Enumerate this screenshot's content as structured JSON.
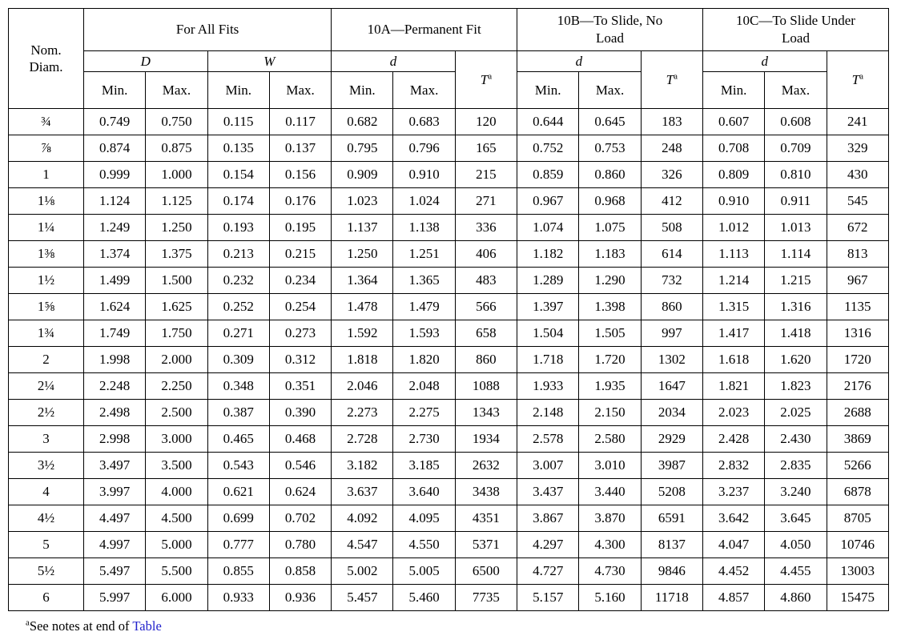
{
  "table": {
    "corner_header": {
      "line1": "Nom.",
      "line2": "Diam."
    },
    "min_label": "Min.",
    "max_label": "Max.",
    "t_label": "T",
    "t_superscript": "a",
    "groups": [
      {
        "label": "For All Fits",
        "columns": [
          {
            "label": "D"
          },
          {
            "label": "W"
          }
        ]
      },
      {
        "label": "10A—Permanent Fit",
        "columns": [
          {
            "label": "d"
          }
        ]
      },
      {
        "label": "10B—To Slide, No Load",
        "columns": [
          {
            "label": "d"
          }
        ]
      },
      {
        "label": "10C—To Slide Under Load",
        "columns": [
          {
            "label": "d"
          }
        ]
      }
    ],
    "rows": [
      {
        "diam": "¾",
        "values": [
          "0.749",
          "0.750",
          "0.115",
          "0.117",
          "0.682",
          "0.683",
          "120",
          "0.644",
          "0.645",
          "183",
          "0.607",
          "0.608",
          "241"
        ]
      },
      {
        "diam": "⅞",
        "values": [
          "0.874",
          "0.875",
          "0.135",
          "0.137",
          "0.795",
          "0.796",
          "165",
          "0.752",
          "0.753",
          "248",
          "0.708",
          "0.709",
          "329"
        ]
      },
      {
        "diam": "1",
        "values": [
          "0.999",
          "1.000",
          "0.154",
          "0.156",
          "0.909",
          "0.910",
          "215",
          "0.859",
          "0.860",
          "326",
          "0.809",
          "0.810",
          "430"
        ]
      },
      {
        "diam": "1⅛",
        "values": [
          "1.124",
          "1.125",
          "0.174",
          "0.176",
          "1.023",
          "1.024",
          "271",
          "0.967",
          "0.968",
          "412",
          "0.910",
          "0.911",
          "545"
        ]
      },
      {
        "diam": "1¼",
        "values": [
          "1.249",
          "1.250",
          "0.193",
          "0.195",
          "1.137",
          "1.138",
          "336",
          "1.074",
          "1.075",
          "508",
          "1.012",
          "1.013",
          "672"
        ]
      },
      {
        "diam": "1⅜",
        "values": [
          "1.374",
          "1.375",
          "0.213",
          "0.215",
          "1.250",
          "1.251",
          "406",
          "1.182",
          "1.183",
          "614",
          "1.113",
          "1.114",
          "813"
        ]
      },
      {
        "diam": "1½",
        "values": [
          "1.499",
          "1.500",
          "0.232",
          "0.234",
          "1.364",
          "1.365",
          "483",
          "1.289",
          "1.290",
          "732",
          "1.214",
          "1.215",
          "967"
        ]
      },
      {
        "diam": "1⅝",
        "values": [
          "1.624",
          "1.625",
          "0.252",
          "0.254",
          "1.478",
          "1.479",
          "566",
          "1.397",
          "1.398",
          "860",
          "1.315",
          "1.316",
          "1135"
        ]
      },
      {
        "diam": "1¾",
        "values": [
          "1.749",
          "1.750",
          "0.271",
          "0.273",
          "1.592",
          "1.593",
          "658",
          "1.504",
          "1.505",
          "997",
          "1.417",
          "1.418",
          "1316"
        ]
      },
      {
        "diam": "2",
        "values": [
          "1.998",
          "2.000",
          "0.309",
          "0.312",
          "1.818",
          "1.820",
          "860",
          "1.718",
          "1.720",
          "1302",
          "1.618",
          "1.620",
          "1720"
        ]
      },
      {
        "diam": "2¼",
        "values": [
          "2.248",
          "2.250",
          "0.348",
          "0.351",
          "2.046",
          "2.048",
          "1088",
          "1.933",
          "1.935",
          "1647",
          "1.821",
          "1.823",
          "2176"
        ]
      },
      {
        "diam": "2½",
        "values": [
          "2.498",
          "2.500",
          "0.387",
          "0.390",
          "2.273",
          "2.275",
          "1343",
          "2.148",
          "2.150",
          "2034",
          "2.023",
          "2.025",
          "2688"
        ]
      },
      {
        "diam": "3",
        "values": [
          "2.998",
          "3.000",
          "0.465",
          "0.468",
          "2.728",
          "2.730",
          "1934",
          "2.578",
          "2.580",
          "2929",
          "2.428",
          "2.430",
          "3869"
        ]
      },
      {
        "diam": "3½",
        "values": [
          "3.497",
          "3.500",
          "0.543",
          "0.546",
          "3.182",
          "3.185",
          "2632",
          "3.007",
          "3.010",
          "3987",
          "2.832",
          "2.835",
          "5266"
        ]
      },
      {
        "diam": "4",
        "values": [
          "3.997",
          "4.000",
          "0.621",
          "0.624",
          "3.637",
          "3.640",
          "3438",
          "3.437",
          "3.440",
          "5208",
          "3.237",
          "3.240",
          "6878"
        ]
      },
      {
        "diam": "4½",
        "values": [
          "4.497",
          "4.500",
          "0.699",
          "0.702",
          "4.092",
          "4.095",
          "4351",
          "3.867",
          "3.870",
          "6591",
          "3.642",
          "3.645",
          "8705"
        ]
      },
      {
        "diam": "5",
        "values": [
          "4.997",
          "5.000",
          "0.777",
          "0.780",
          "4.547",
          "4.550",
          "5371",
          "4.297",
          "4.300",
          "8137",
          "4.047",
          "4.050",
          "10746"
        ]
      },
      {
        "diam": "5½",
        "values": [
          "5.497",
          "5.500",
          "0.855",
          "0.858",
          "5.002",
          "5.005",
          "6500",
          "4.727",
          "4.730",
          "9846",
          "4.452",
          "4.455",
          "13003"
        ]
      },
      {
        "diam": "6",
        "values": [
          "5.997",
          "6.000",
          "0.933",
          "0.936",
          "5.457",
          "5.460",
          "7735",
          "5.157",
          "5.160",
          "11718",
          "4.857",
          "4.860",
          "15475"
        ]
      }
    ]
  },
  "footnote": {
    "marker": "a",
    "text": "See notes at end of ",
    "link_text": "Table",
    "link_color": "#2222cc"
  }
}
